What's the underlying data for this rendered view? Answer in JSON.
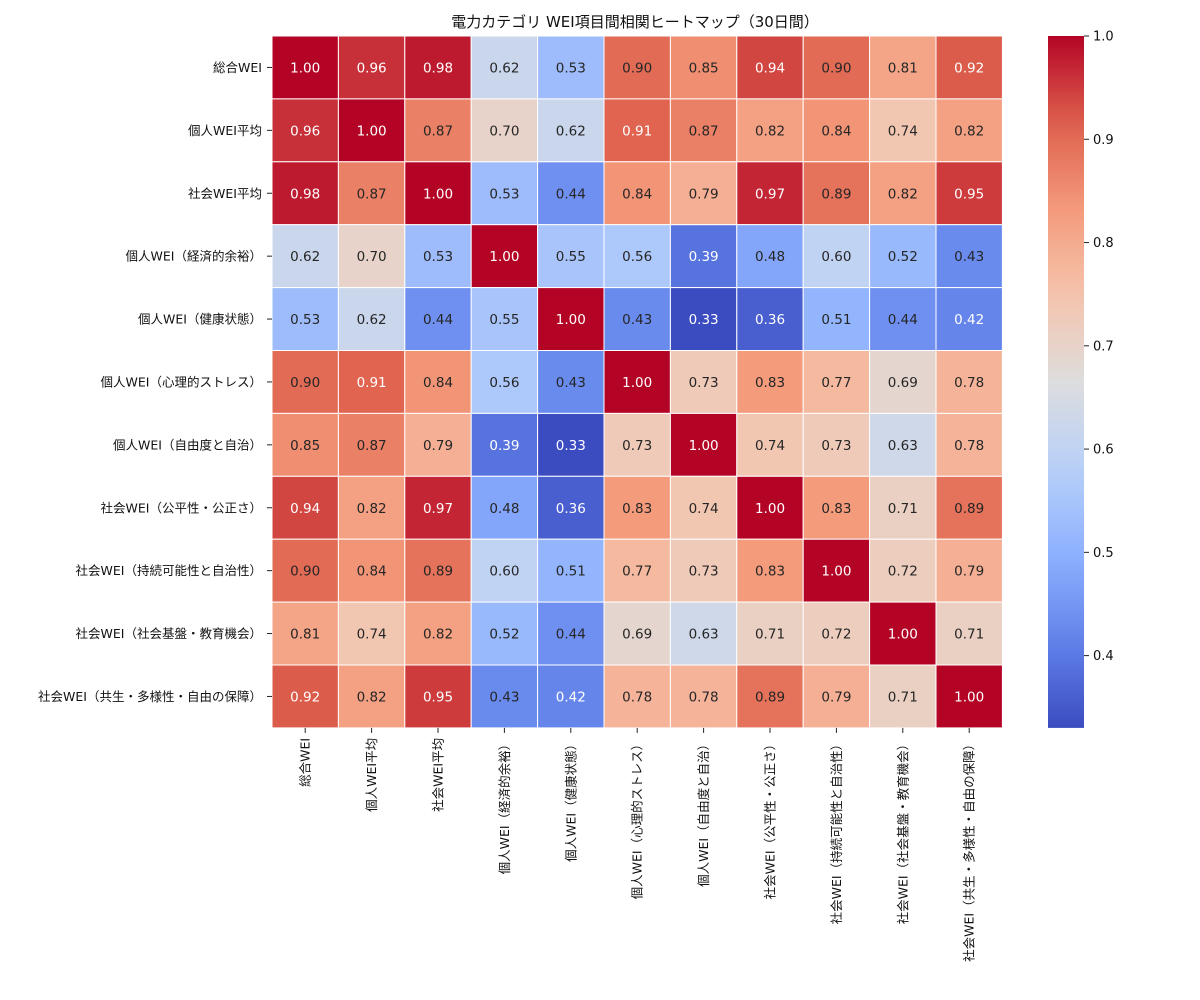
{
  "chart_data": {
    "type": "heatmap",
    "title": "電力カテゴリ WEI項目間相関ヒートマップ（30日間）",
    "labels": [
      "総合WEI",
      "個人WEI平均",
      "社会WEI平均",
      "個人WEI（経済的余裕）",
      "個人WEI（健康状態）",
      "個人WEI（心理的ストレス）",
      "個人WEI（自由度と自治）",
      "社会WEI（公平性・公正さ）",
      "社会WEI（持続可能性と自治性）",
      "社会WEI（社会基盤・教育機会）",
      "社会WEI（共生・多様性・自由の保障）"
    ],
    "matrix": [
      [
        1.0,
        0.96,
        0.98,
        0.62,
        0.53,
        0.9,
        0.85,
        0.94,
        0.9,
        0.81,
        0.92
      ],
      [
        0.96,
        1.0,
        0.87,
        0.7,
        0.62,
        0.91,
        0.87,
        0.82,
        0.84,
        0.74,
        0.82
      ],
      [
        0.98,
        0.87,
        1.0,
        0.53,
        0.44,
        0.84,
        0.79,
        0.97,
        0.89,
        0.82,
        0.95
      ],
      [
        0.62,
        0.7,
        0.53,
        1.0,
        0.55,
        0.56,
        0.39,
        0.48,
        0.6,
        0.52,
        0.43
      ],
      [
        0.53,
        0.62,
        0.44,
        0.55,
        1.0,
        0.43,
        0.33,
        0.36,
        0.51,
        0.44,
        0.42
      ],
      [
        0.9,
        0.91,
        0.84,
        0.56,
        0.43,
        1.0,
        0.73,
        0.83,
        0.77,
        0.69,
        0.78
      ],
      [
        0.85,
        0.87,
        0.79,
        0.39,
        0.33,
        0.73,
        1.0,
        0.74,
        0.73,
        0.63,
        0.78
      ],
      [
        0.94,
        0.82,
        0.97,
        0.48,
        0.36,
        0.83,
        0.74,
        1.0,
        0.83,
        0.71,
        0.89
      ],
      [
        0.9,
        0.84,
        0.89,
        0.6,
        0.51,
        0.77,
        0.73,
        0.83,
        1.0,
        0.72,
        0.79
      ],
      [
        0.81,
        0.74,
        0.82,
        0.52,
        0.44,
        0.69,
        0.63,
        0.71,
        0.72,
        1.0,
        0.71
      ],
      [
        0.92,
        0.82,
        0.95,
        0.43,
        0.42,
        0.78,
        0.78,
        0.89,
        0.79,
        0.71,
        1.0
      ]
    ],
    "value_format": "2 decimals",
    "colormap": "coolwarm",
    "vmin": 0.33,
    "vmax": 1.0,
    "colorbar_ticks": [
      "0.4",
      "0.5",
      "0.6",
      "0.7",
      "0.8",
      "0.9",
      "1.0"
    ]
  }
}
